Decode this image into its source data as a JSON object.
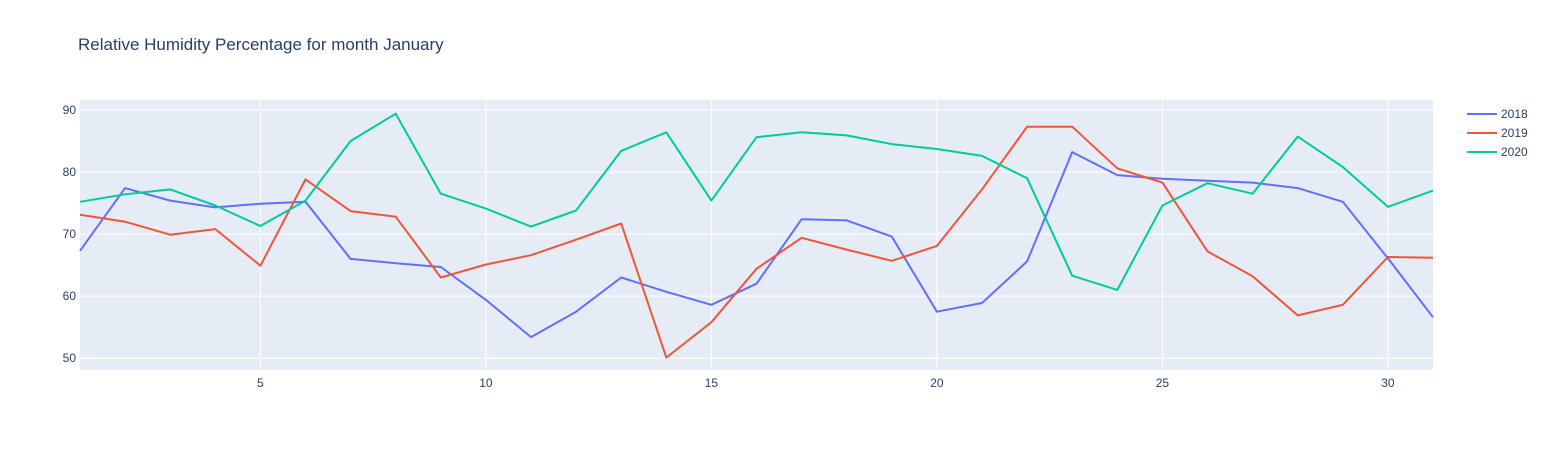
{
  "chart_data": {
    "type": "line",
    "title": "Relative Humidity Percentage for month January",
    "xlabel": "",
    "ylabel": "",
    "xlim": [
      1,
      31
    ],
    "ylim": [
      48.1,
      91.6
    ],
    "x_ticks": [
      5,
      10,
      15,
      20,
      25,
      30
    ],
    "y_ticks": [
      50,
      60,
      70,
      80,
      90
    ],
    "grid": true,
    "legend_position": "right",
    "x": [
      1,
      2,
      3,
      4,
      5,
      6,
      7,
      8,
      9,
      10,
      11,
      12,
      13,
      14,
      15,
      16,
      17,
      18,
      19,
      20,
      21,
      22,
      23,
      24,
      25,
      26,
      27,
      28,
      29,
      30,
      31
    ],
    "series": [
      {
        "name": "2018",
        "color": "#636efa",
        "values": [
          67.3,
          77.4,
          75.4,
          74.3,
          74.9,
          75.2,
          66.0,
          65.3,
          64.7,
          59.4,
          53.4,
          57.5,
          63.0,
          60.7,
          58.6,
          62.0,
          72.4,
          72.2,
          69.6,
          57.5,
          58.9,
          65.6,
          83.2,
          79.5,
          78.9,
          78.6,
          78.3,
          77.4,
          75.2,
          66.1,
          56.6
        ]
      },
      {
        "name": "2019",
        "color": "#ef553b",
        "values": [
          73.1,
          72.0,
          69.9,
          70.8,
          64.9,
          78.8,
          73.7,
          72.8,
          63.0,
          65.1,
          66.6,
          69.1,
          71.7,
          50.1,
          55.8,
          64.4,
          69.4,
          67.5,
          65.7,
          68.1,
          77.2,
          87.3,
          87.3,
          80.6,
          78.3,
          67.2,
          63.2,
          56.9,
          58.6,
          66.3,
          66.2
        ]
      },
      {
        "name": "2020",
        "color": "#00cc96",
        "values": [
          75.2,
          76.4,
          77.2,
          74.6,
          71.3,
          75.4,
          85.0,
          89.4,
          76.5,
          74.1,
          71.2,
          73.8,
          83.4,
          86.4,
          75.4,
          85.6,
          86.4,
          85.9,
          84.5,
          83.7,
          82.6,
          79.0,
          63.3,
          61.0,
          74.6,
          78.2,
          76.5,
          85.7,
          80.8,
          74.4,
          77.0
        ]
      }
    ]
  }
}
